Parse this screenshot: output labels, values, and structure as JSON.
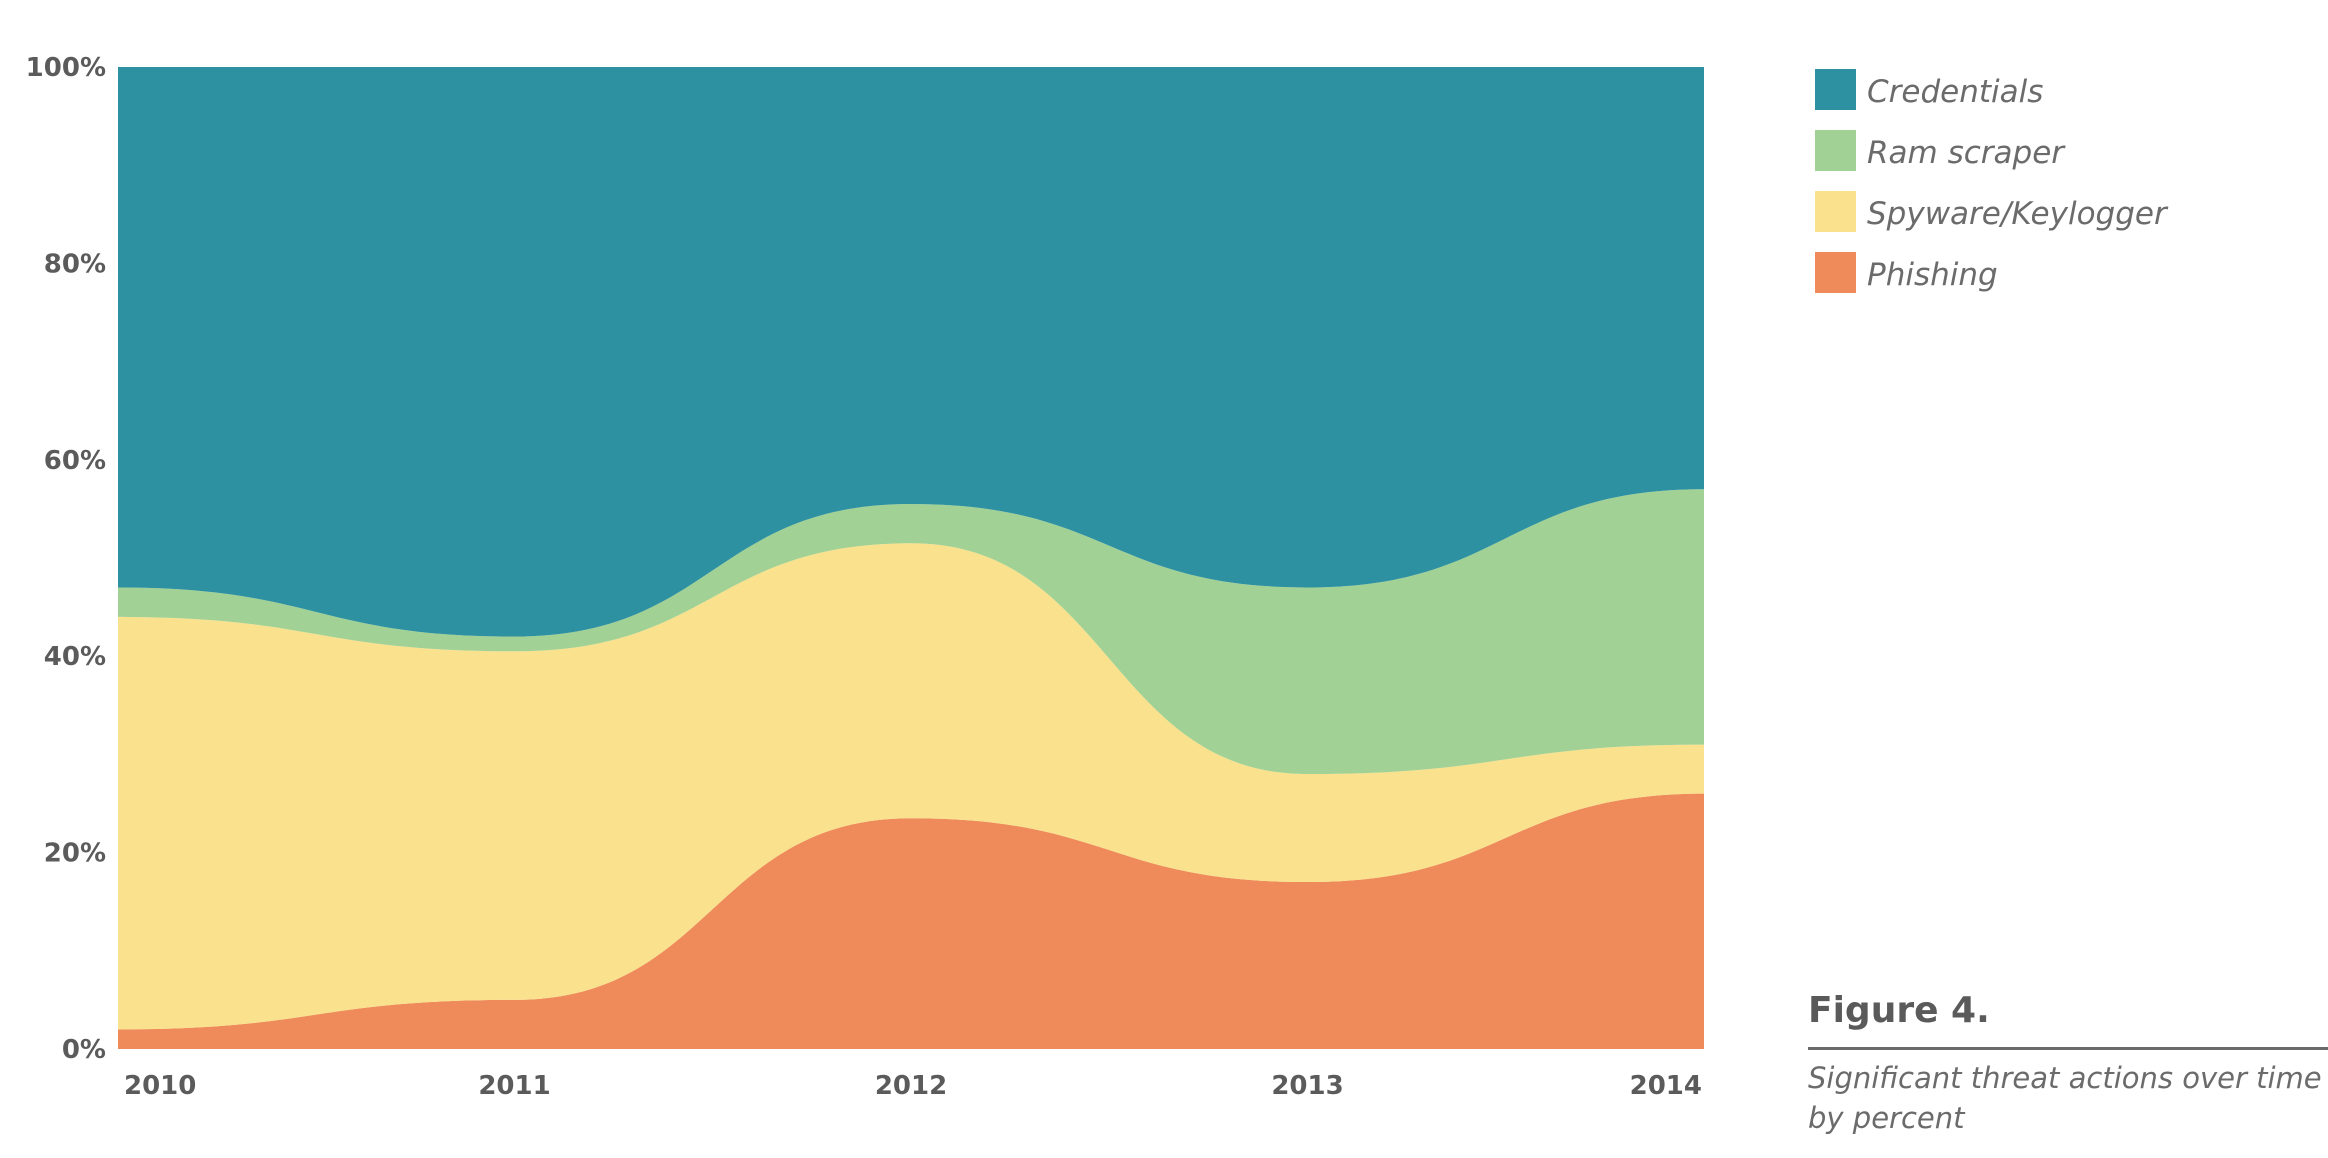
{
  "chart_data": {
    "type": "area",
    "stacked": true,
    "x": [
      "2010",
      "2011",
      "2012",
      "2013",
      "2014"
    ],
    "series": [
      {
        "name": "Phishing",
        "color": "#ef8b5a",
        "values": [
          2,
          5,
          23.5,
          17,
          26
        ]
      },
      {
        "name": "Spyware/Keylogger",
        "color": "#f9e18d",
        "values": [
          42,
          35.5,
          28,
          11,
          5
        ]
      },
      {
        "name": "Ram scraper",
        "color": "#a1d194",
        "values": [
          3,
          1.5,
          4,
          19,
          26
        ]
      },
      {
        "name": "Credentials",
        "color": "#2d91a2",
        "values": [
          53,
          58,
          44.5,
          53,
          43
        ]
      }
    ],
    "yticks": [
      "0%",
      "20%",
      "40%",
      "60%",
      "80%",
      "100%"
    ],
    "ylim": [
      0,
      100
    ],
    "legend_position": "right"
  },
  "legend_order": [
    "Credentials",
    "Ram scraper",
    "Spyware/Keylogger",
    "Phishing"
  ],
  "figure": {
    "title": "Figure 4.",
    "caption": "Significant threat actions over time by percent"
  }
}
